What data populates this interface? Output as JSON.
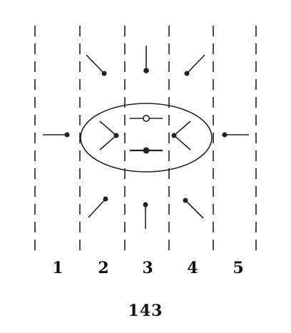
{
  "columns": [
    "1",
    "2",
    "3",
    "4",
    "5"
  ],
  "figure_number": "143"
}
